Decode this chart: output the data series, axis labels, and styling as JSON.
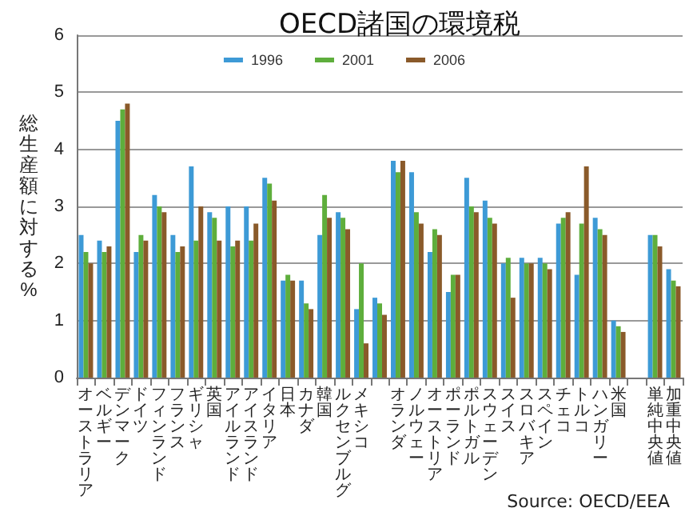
{
  "chart_data": {
    "type": "bar",
    "title": "OECD諸国の環境税",
    "ylabel": "総生産額に対する%",
    "categories": [
      "オーストラリア",
      "ベルギー",
      "デンマーク",
      "ドイツ",
      "フィンランド",
      "フランス",
      "ギリシャ",
      "英国",
      "アイルランド",
      "アイスランド",
      "イタリア",
      "日本",
      "カナダ",
      "韓国",
      "ルクセンブルグ",
      "メキシコ",
      null,
      "オランダ",
      "ノルウェー",
      "オーストリア",
      "ポーランド",
      "ポルトガル",
      "スウェーデン",
      "スイス",
      "スロバキア",
      "スペイン",
      "チェコ",
      "トルコ",
      "ハンガリー",
      "米国",
      null,
      "単純中央値",
      "加重中央値"
    ],
    "series": [
      {
        "name": "1996",
        "color": "#3d9ad6",
        "values": [
          2.5,
          2.4,
          4.5,
          2.2,
          3.2,
          2.5,
          3.7,
          2.9,
          3.0,
          3.0,
          3.5,
          1.7,
          1.7,
          2.5,
          2.9,
          1.2,
          1.4,
          3.8,
          3.6,
          2.2,
          1.5,
          3.5,
          3.1,
          2.0,
          2.1,
          2.1,
          2.7,
          1.8,
          2.8,
          1.0,
          null,
          2.5,
          1.9
        ]
      },
      {
        "name": "2001",
        "color": "#5eae3c",
        "values": [
          2.2,
          2.2,
          4.7,
          2.5,
          3.0,
          2.2,
          2.4,
          2.8,
          2.3,
          2.4,
          3.4,
          1.8,
          1.3,
          3.2,
          2.8,
          2.0,
          1.3,
          3.6,
          2.9,
          2.6,
          1.8,
          3.0,
          2.8,
          2.1,
          2.0,
          2.0,
          2.8,
          2.7,
          2.6,
          0.9,
          null,
          2.5,
          1.7
        ]
      },
      {
        "name": "2006",
        "color": "#8a5a2a",
        "values": [
          2.0,
          2.3,
          4.8,
          2.4,
          2.9,
          2.3,
          3.0,
          2.4,
          2.4,
          2.7,
          3.1,
          1.7,
          1.2,
          2.8,
          2.6,
          0.6,
          1.1,
          3.8,
          2.7,
          2.5,
          1.8,
          2.9,
          2.7,
          1.4,
          2.0,
          1.9,
          2.9,
          3.7,
          2.5,
          0.8,
          null,
          2.3,
          1.6
        ]
      }
    ],
    "ylim": [
      0,
      6
    ],
    "yticks": [
      0,
      1,
      2,
      3,
      4,
      5,
      6
    ],
    "grid": "y",
    "legend": "top",
    "annotations": [
      "Source: OECD/EEA"
    ]
  }
}
